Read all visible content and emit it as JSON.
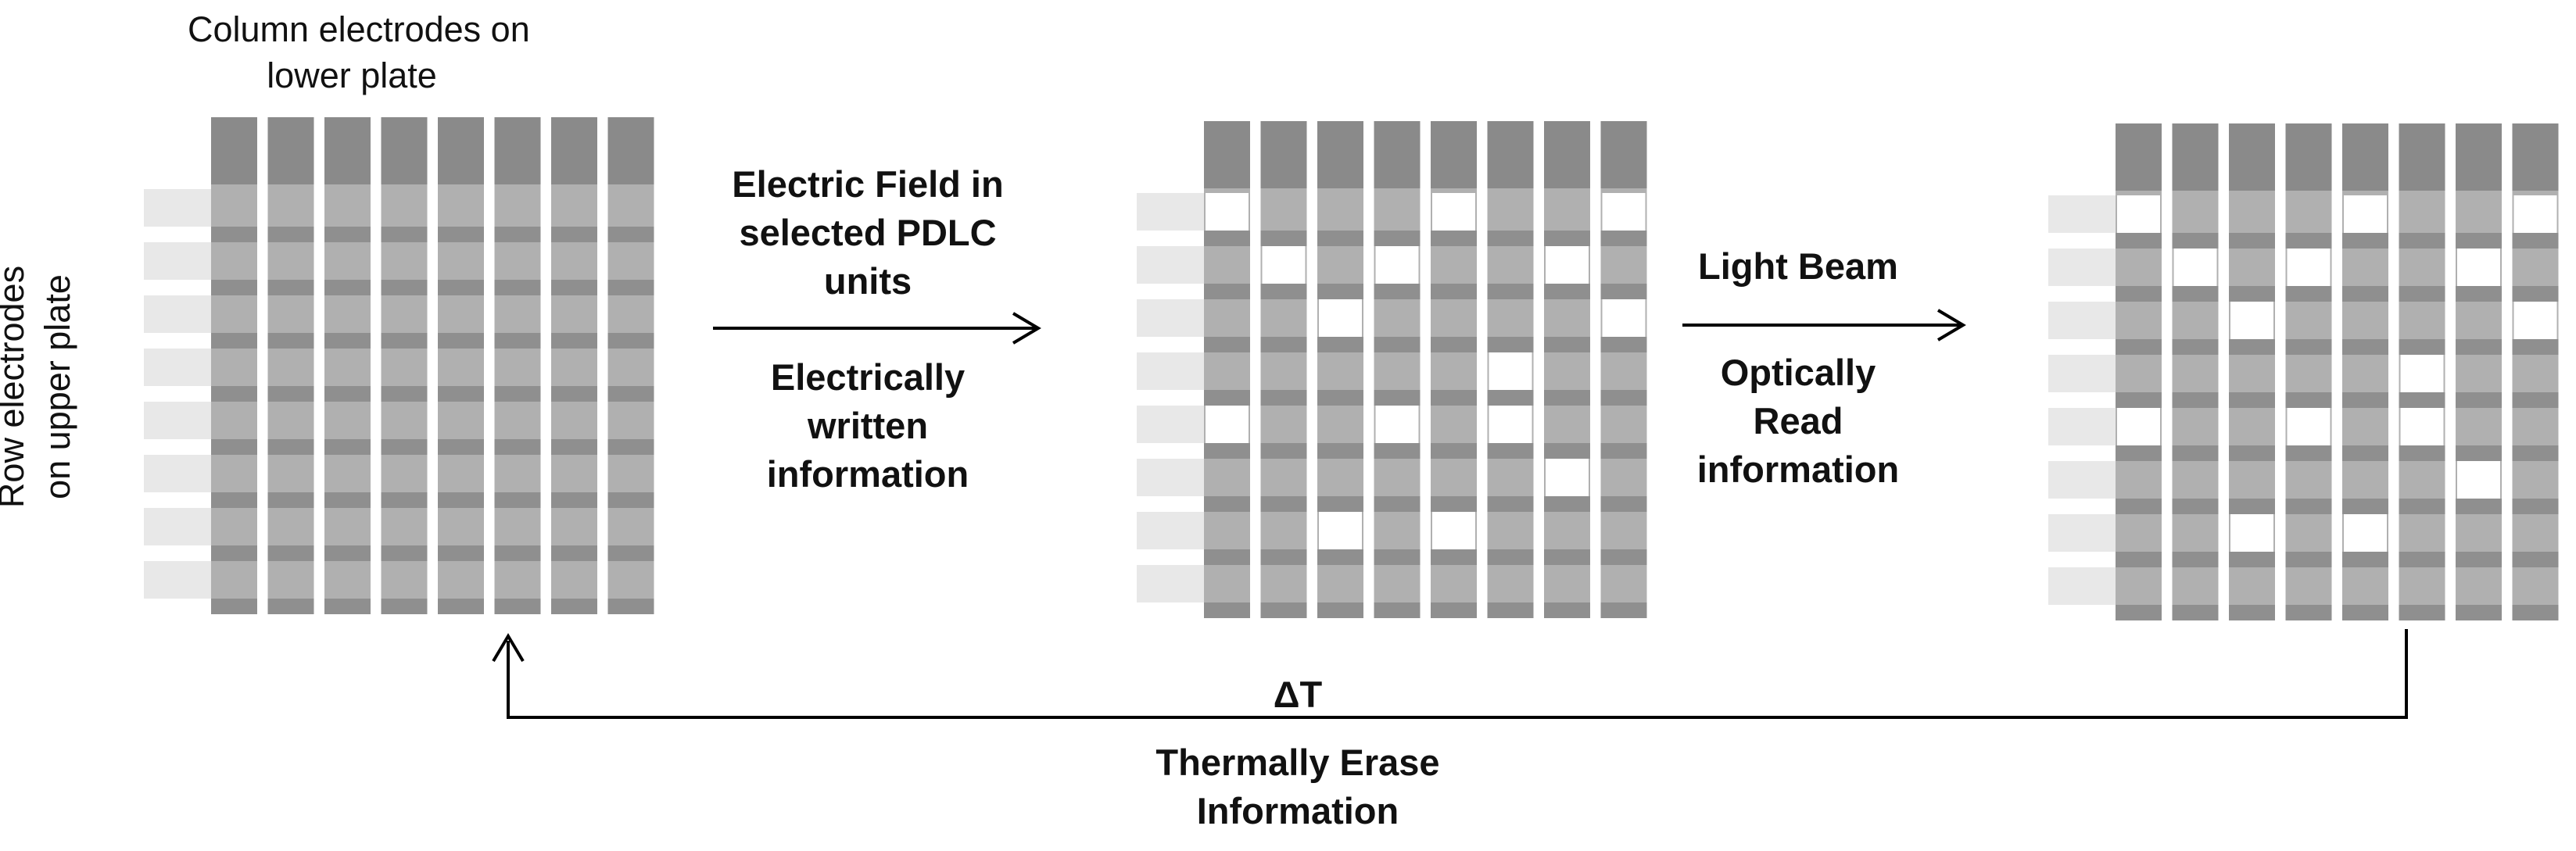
{
  "labels": {
    "column_electrodes": [
      "Column electrodes on",
      "lower plate"
    ],
    "row_electrodes": [
      "Row electrodes",
      "on upper plate"
    ],
    "electric_field": [
      "Electric Field in",
      "selected PDLC",
      "units"
    ],
    "electrically_written": [
      "Electrically",
      "written",
      "information"
    ],
    "light_beam": [
      "Light Beam"
    ],
    "optically_read": [
      "Optically",
      "Read",
      "information"
    ],
    "delta_t": [
      "ΔT"
    ],
    "thermally_erase": [
      "Thermally Erase",
      "Information"
    ]
  },
  "colors": {
    "column_header": "#8a8a8a",
    "cell": "#b0b0b0",
    "row_band": "#8f8f8f",
    "row_stub": "#e8e8e8",
    "written_cell": "#ffffff",
    "line": "#000000"
  },
  "grids": [
    {
      "name": "blank-grid",
      "rows": 8,
      "cols": 8,
      "written": []
    },
    {
      "name": "written-grid",
      "rows": 8,
      "cols": 8,
      "written": [
        [
          0,
          0
        ],
        [
          0,
          4
        ],
        [
          0,
          7
        ],
        [
          1,
          1
        ],
        [
          1,
          3
        ],
        [
          1,
          6
        ],
        [
          2,
          2
        ],
        [
          2,
          7
        ],
        [
          3,
          5
        ],
        [
          4,
          0
        ],
        [
          4,
          3
        ],
        [
          4,
          5
        ],
        [
          5,
          6
        ],
        [
          6,
          2
        ],
        [
          6,
          4
        ]
      ]
    },
    {
      "name": "read-grid",
      "rows": 8,
      "cols": 8,
      "written": [
        [
          0,
          0
        ],
        [
          0,
          4
        ],
        [
          0,
          7
        ],
        [
          1,
          1
        ],
        [
          1,
          3
        ],
        [
          1,
          6
        ],
        [
          2,
          2
        ],
        [
          2,
          7
        ],
        [
          3,
          5
        ],
        [
          4,
          0
        ],
        [
          4,
          3
        ],
        [
          4,
          5
        ],
        [
          5,
          6
        ],
        [
          6,
          2
        ],
        [
          6,
          4
        ]
      ]
    }
  ]
}
